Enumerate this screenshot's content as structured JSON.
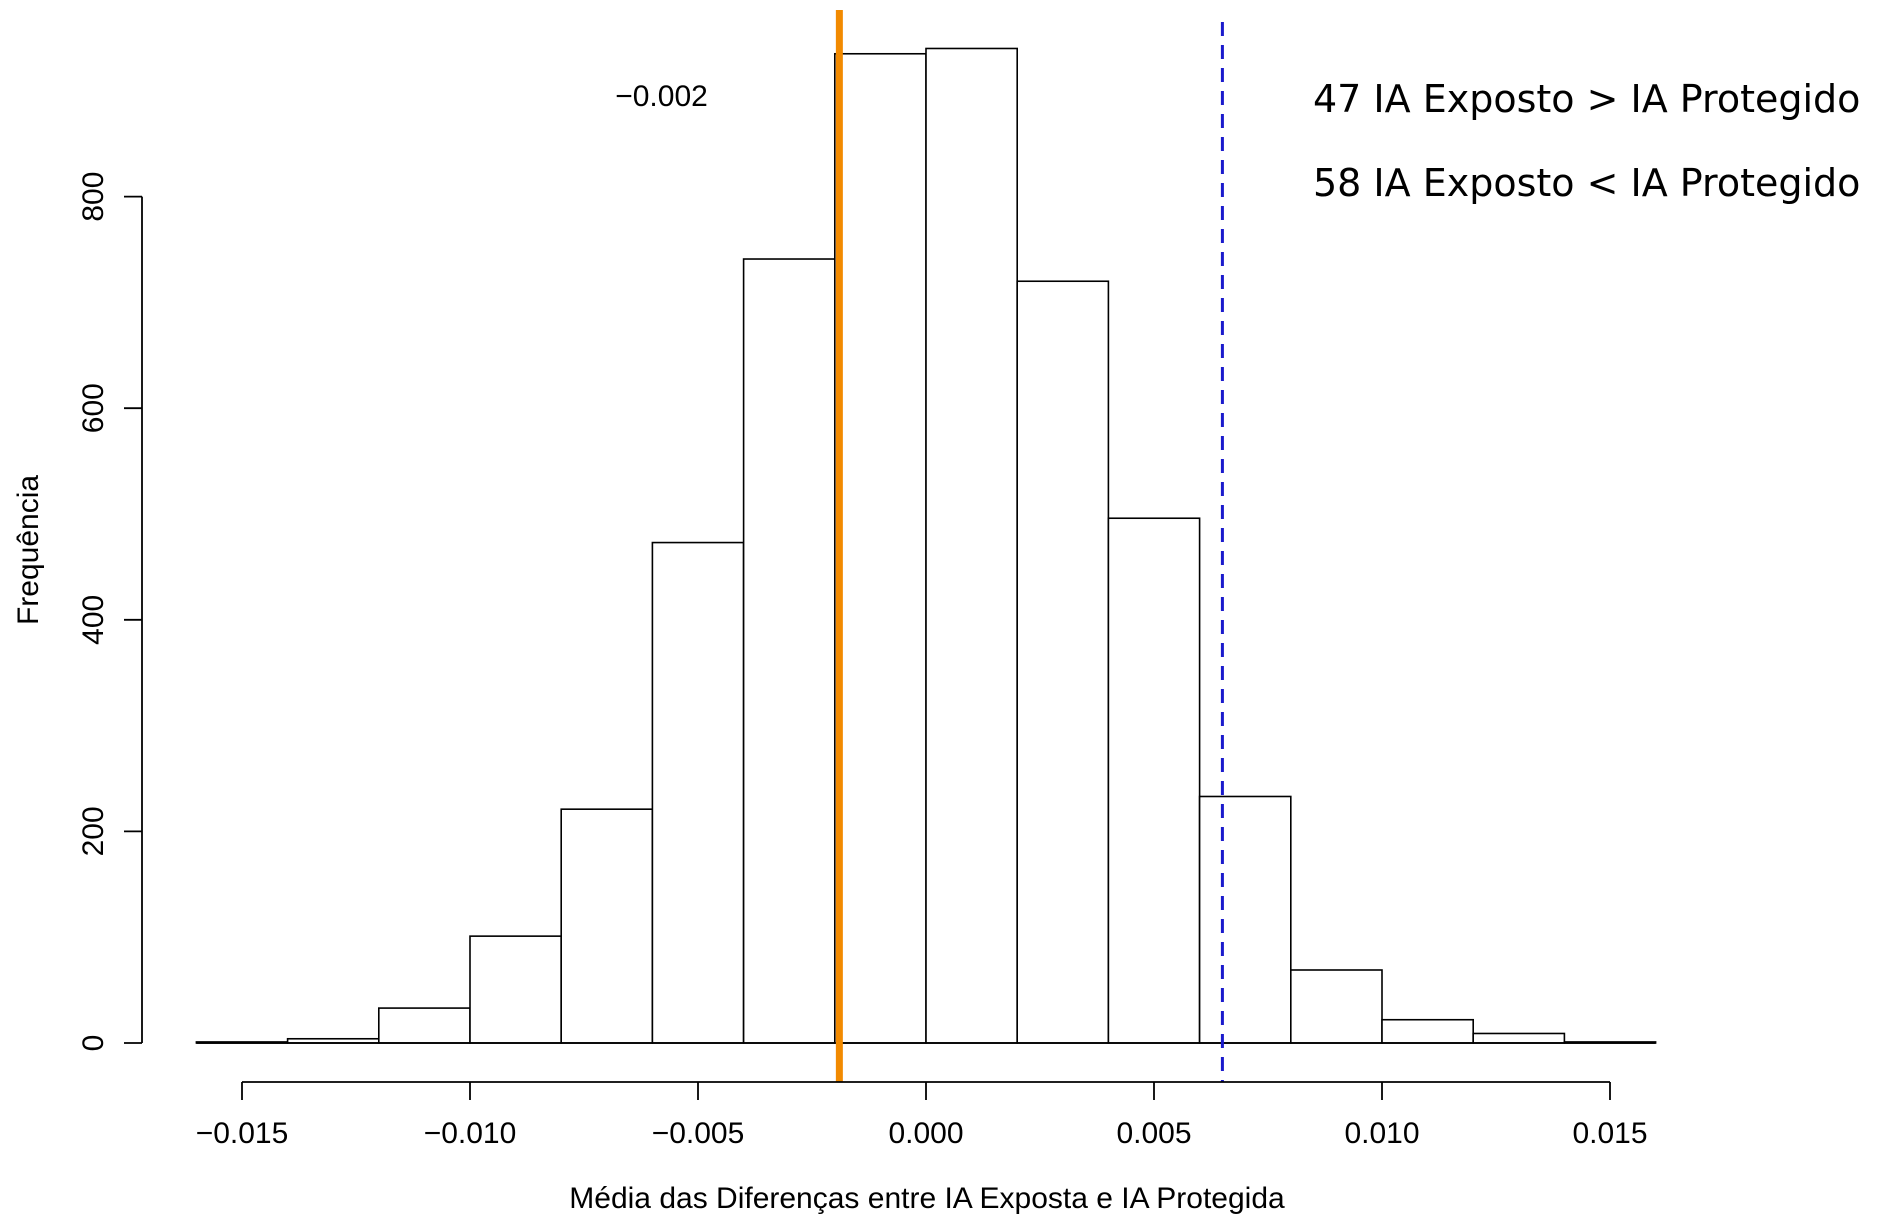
{
  "chart_data": {
    "type": "bar",
    "subtype": "histogram",
    "xlabel": "Média das Diferenças entre IA Exposta e IA Protegida",
    "ylabel": "Frequência",
    "xlim": [
      -0.016,
      0.016
    ],
    "ylim": [
      0,
      950
    ],
    "x_ticks": [
      -0.015,
      -0.01,
      -0.005,
      0.0,
      0.005,
      0.01,
      0.015
    ],
    "x_tick_labels": [
      "−0.015",
      "−0.010",
      "−0.005",
      "0.000",
      "0.005",
      "0.010",
      "0.015"
    ],
    "y_ticks": [
      0,
      200,
      400,
      600,
      800
    ],
    "y_tick_labels": [
      "0",
      "200",
      "400",
      "600",
      "800"
    ],
    "bins": [
      {
        "x0": -0.016,
        "x1": -0.014,
        "count": 1
      },
      {
        "x0": -0.014,
        "x1": -0.012,
        "count": 4
      },
      {
        "x0": -0.012,
        "x1": -0.01,
        "count": 33
      },
      {
        "x0": -0.01,
        "x1": -0.008,
        "count": 101
      },
      {
        "x0": -0.008,
        "x1": -0.006,
        "count": 221
      },
      {
        "x0": -0.006,
        "x1": -0.004,
        "count": 473
      },
      {
        "x0": -0.004,
        "x1": -0.002,
        "count": 741
      },
      {
        "x0": -0.002,
        "x1": 0.0,
        "count": 935
      },
      {
        "x0": 0.0,
        "x1": 0.002,
        "count": 940
      },
      {
        "x0": 0.002,
        "x1": 0.004,
        "count": 720
      },
      {
        "x0": 0.004,
        "x1": 0.006,
        "count": 496
      },
      {
        "x0": 0.006,
        "x1": 0.008,
        "count": 233
      },
      {
        "x0": 0.008,
        "x1": 0.01,
        "count": 69
      },
      {
        "x0": 0.01,
        "x1": 0.012,
        "count": 22
      },
      {
        "x0": 0.012,
        "x1": 0.014,
        "count": 9
      },
      {
        "x0": 0.014,
        "x1": 0.016,
        "count": 1
      }
    ],
    "reference_lines": [
      {
        "x": -0.0019,
        "style": "solid",
        "color": "#f28a00"
      },
      {
        "x": 0.0065,
        "style": "dashed",
        "color": "#1a1acc"
      }
    ],
    "annotation": {
      "text": "−0.002",
      "x": -0.0058,
      "y": 895
    },
    "legend_lines": [
      "47  IA Exposto > IA Protegido",
      "58  IA Exposto < IA Protegido"
    ],
    "legend_position": "top-right",
    "grid": false
  }
}
